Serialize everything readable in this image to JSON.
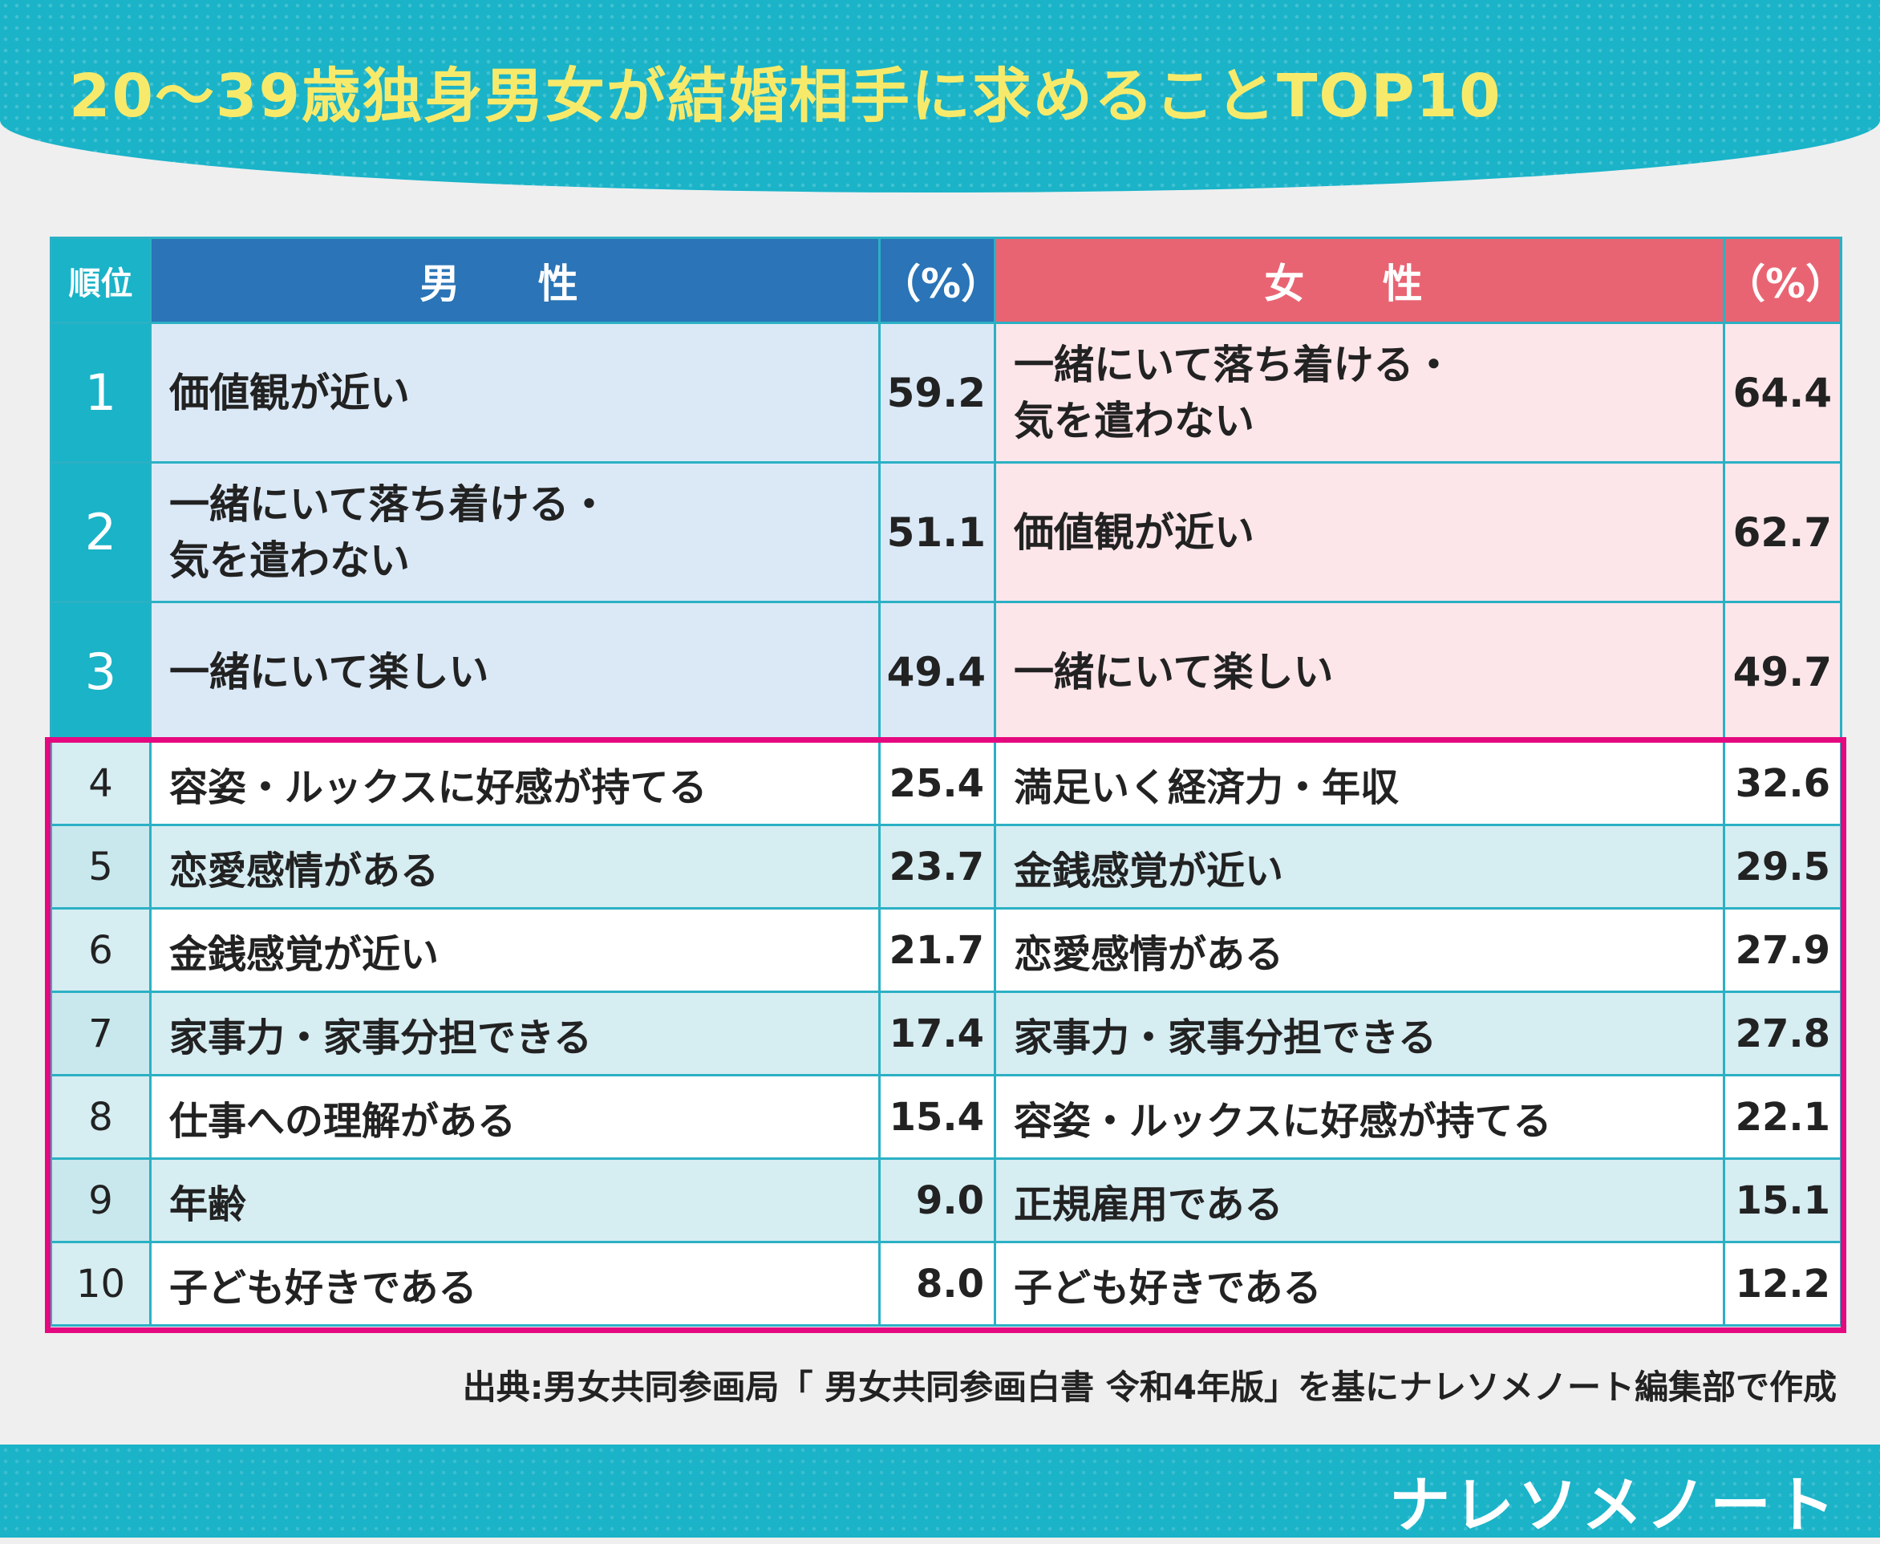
{
  "title": "20～39歳独身男女が結婚相手に求めることTOP10",
  "headers": {
    "rank": "順位",
    "male": "男 性",
    "male_pct": "（%）",
    "female": "女 性",
    "female_pct": "（%）"
  },
  "rows": [
    {
      "rank": "1",
      "male": "価値観が近い",
      "male_pct": "59.2",
      "female": "一緒にいて落ち着ける・\n気を遣わない",
      "female_pct": "64.4"
    },
    {
      "rank": "2",
      "male": "一緒にいて落ち着ける・\n気を遣わない",
      "male_pct": "51.1",
      "female": "価値観が近い",
      "female_pct": "62.7"
    },
    {
      "rank": "3",
      "male": "一緒にいて楽しい",
      "male_pct": "49.4",
      "female": "一緒にいて楽しい",
      "female_pct": "49.7"
    },
    {
      "rank": "4",
      "male": "容姿・ルックスに好感が持てる",
      "male_pct": "25.4",
      "female": "満足いく経済力・年収",
      "female_pct": "32.6"
    },
    {
      "rank": "5",
      "male": "恋愛感情がある",
      "male_pct": "23.7",
      "female": "金銭感覚が近い",
      "female_pct": "29.5"
    },
    {
      "rank": "6",
      "male": "金銭感覚が近い",
      "male_pct": "21.7",
      "female": "恋愛感情がある",
      "female_pct": "27.9"
    },
    {
      "rank": "7",
      "male": "家事力・家事分担できる",
      "male_pct": "17.4",
      "female": "家事力・家事分担できる",
      "female_pct": "27.8"
    },
    {
      "rank": "8",
      "male": "仕事への理解がある",
      "male_pct": "15.4",
      "female": "容姿・ルックスに好感が持てる",
      "female_pct": "22.1"
    },
    {
      "rank": "9",
      "male": "年齢",
      "male_pct": "9.0",
      "female": "正規雇用である",
      "female_pct": "15.1"
    },
    {
      "rank": "10",
      "male": "子ども好きである",
      "male_pct": "8.0",
      "female": "子ども好きである",
      "female_pct": "12.2"
    }
  ],
  "source": "出典:男女共同参画局「 男女共同参画白書 令和4年版」を基にナレソメノート編集部で作成",
  "brand": "ナレソメノート",
  "colors": {
    "accent_teal": "#1ab3c8",
    "male_header": "#2a74b7",
    "female_header": "#e96472",
    "highlight_border": "#e5097f",
    "title_text": "#f7ea6b"
  }
}
